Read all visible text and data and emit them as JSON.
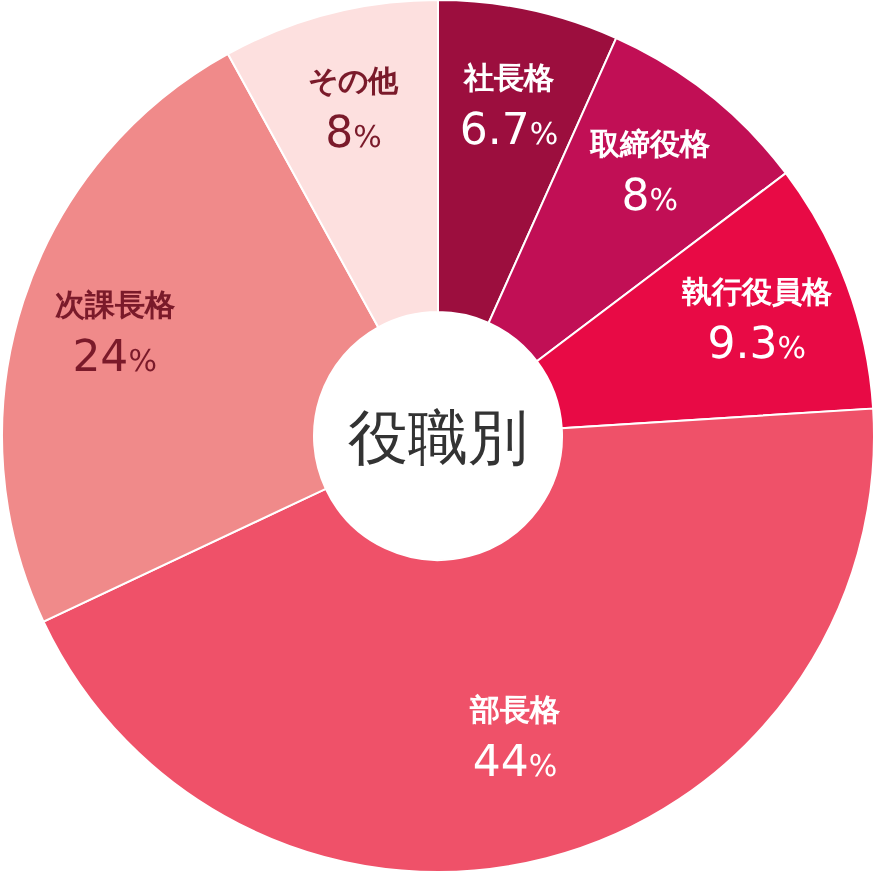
{
  "chart_data": {
    "type": "donut",
    "title": "役職別",
    "categories": [
      "社長格",
      "取締役格",
      "執行役員格",
      "部長格",
      "次課長格",
      "その他"
    ],
    "values": [
      6.7,
      8,
      9.3,
      44,
      24,
      8
    ],
    "colors": [
      "#9c0e3e",
      "#c10f55",
      "#e80a45",
      "#ef5169",
      "#f08a8a",
      "#fde0df"
    ],
    "value_labels": [
      "6.7%",
      "8%",
      "9.3%",
      "44%",
      "24%",
      "8%"
    ]
  }
}
